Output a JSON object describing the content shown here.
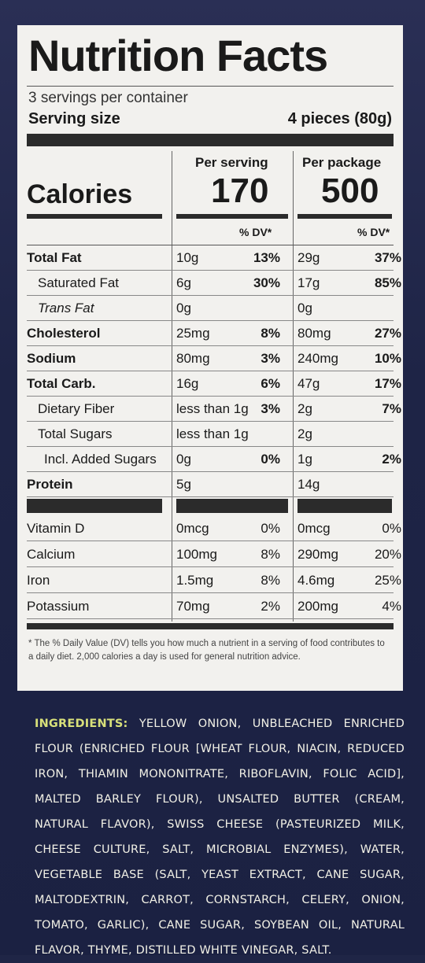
{
  "label": {
    "title": "Nutrition Facts",
    "servings_per_container": "3 servings per container",
    "serving_size_label": "Serving size",
    "serving_size_value": "4 pieces (80g)",
    "col_per_serving": "Per serving",
    "col_per_package": "Per package",
    "calories_label": "Calories",
    "calories_serving": "170",
    "calories_package": "500",
    "dv_header": "% DV*",
    "rows": [
      {
        "name": "Total Fat",
        "v1": "10g",
        "p1": "13%",
        "v2": "29g",
        "p2": "37%"
      },
      {
        "name": "Saturated Fat",
        "v1": "6g",
        "p1": "30%",
        "v2": "17g",
        "p2": "85%"
      },
      {
        "name": "Trans Fat",
        "v1": "0g",
        "p1": "",
        "v2": "0g",
        "p2": ""
      },
      {
        "name": "Cholesterol",
        "v1": "25mg",
        "p1": "8%",
        "v2": "80mg",
        "p2": "27%"
      },
      {
        "name": "Sodium",
        "v1": "80mg",
        "p1": "3%",
        "v2": "240mg",
        "p2": "10%"
      },
      {
        "name": "Total Carb.",
        "v1": "16g",
        "p1": "6%",
        "v2": "47g",
        "p2": "17%"
      },
      {
        "name": "Dietary Fiber",
        "v1": "less than 1g",
        "p1": "3%",
        "v2": "2g",
        "p2": "7%"
      },
      {
        "name": "Total Sugars",
        "v1": "less than 1g",
        "p1": "",
        "v2": "2g",
        "p2": ""
      },
      {
        "name": "Incl. Added Sugars",
        "v1": "0g",
        "p1": "0%",
        "v2": "1g",
        "p2": "2%"
      },
      {
        "name": "Protein",
        "v1": "5g",
        "p1": "",
        "v2": "14g",
        "p2": ""
      }
    ],
    "vitamins": [
      {
        "name": "Vitamin D",
        "v1": "0mcg",
        "p1": "0%",
        "v2": "0mcg",
        "p2": "0%"
      },
      {
        "name": "Calcium",
        "v1": "100mg",
        "p1": "8%",
        "v2": "290mg",
        "p2": "20%"
      },
      {
        "name": "Iron",
        "v1": "1.5mg",
        "p1": "8%",
        "v2": "4.6mg",
        "p2": "25%"
      },
      {
        "name": "Potassium",
        "v1": "70mg",
        "p1": "2%",
        "v2": "200mg",
        "p2": "4%"
      }
    ],
    "footnote": "* The % Daily Value (DV) tells you how much a nutrient in a serving of food contributes to a daily diet. 2,000 calories a day is used for general nutrition advice."
  },
  "ingredients": {
    "heading": "INGREDIENTS:",
    "text": "YELLOW ONION, UNBLEACHED ENRICHED FLOUR (ENRICHED FLOUR [WHEAT FLOUR, NIACIN, REDUCED IRON, THIAMIN MONONITRATE, RIBOFLAVIN, FOLIC ACID], MALTED BARLEY FLOUR), UNSALTED BUTTER (CREAM, NATURAL FLAVOR), SWISS CHEESE (PASTEURIZED MILK, CHEESE CULTURE, SALT, MICROBIAL ENZYMES), WATER, VEGETABLE BASE (SALT, YEAST EXTRACT, CANE SUGAR, MALTODEXTRIN, CARROT, CORNSTARCH, CELERY, ONION, TOMATO, GARLIC), CANE SUGAR, SOYBEAN OIL, NATURAL FLAVOR, THYME, DISTILLED WHITE VINEGAR, SALT."
  }
}
